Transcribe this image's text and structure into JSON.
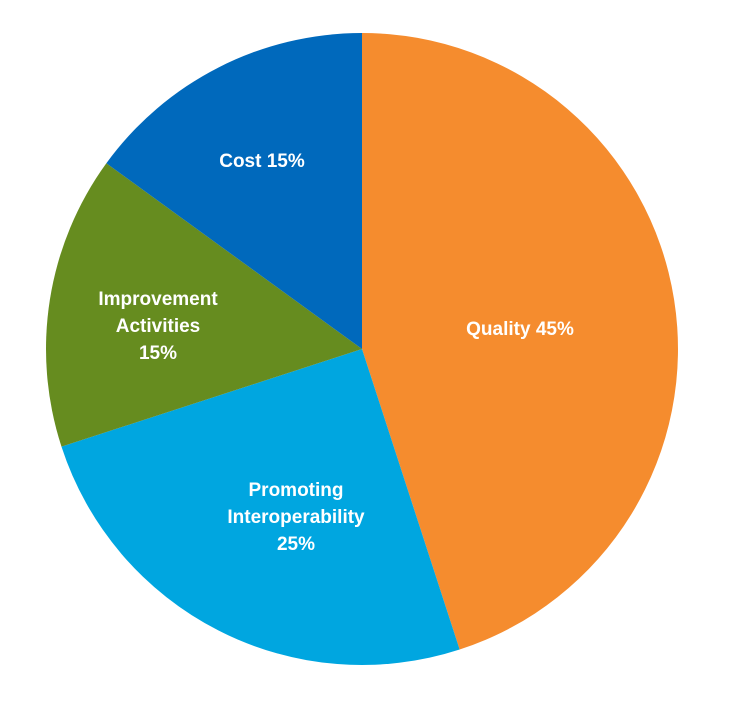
{
  "chart_data": {
    "type": "pie",
    "title": "",
    "start_angle_deg": 0,
    "direction": "clockwise",
    "slices": [
      {
        "label_lines": [
          "Quality 45%"
        ],
        "value": 45,
        "color": "#F58C2E"
      },
      {
        "label_lines": [
          "Promoting",
          "Interoperability",
          "25%"
        ],
        "value": 25,
        "color": "#00A6E0"
      },
      {
        "label_lines": [
          "Improvement",
          "Activities",
          "15%"
        ],
        "value": 15,
        "color": "#668C1F"
      },
      {
        "label_lines": [
          "Cost 15%"
        ],
        "value": 15,
        "color": "#0069BC"
      }
    ]
  }
}
